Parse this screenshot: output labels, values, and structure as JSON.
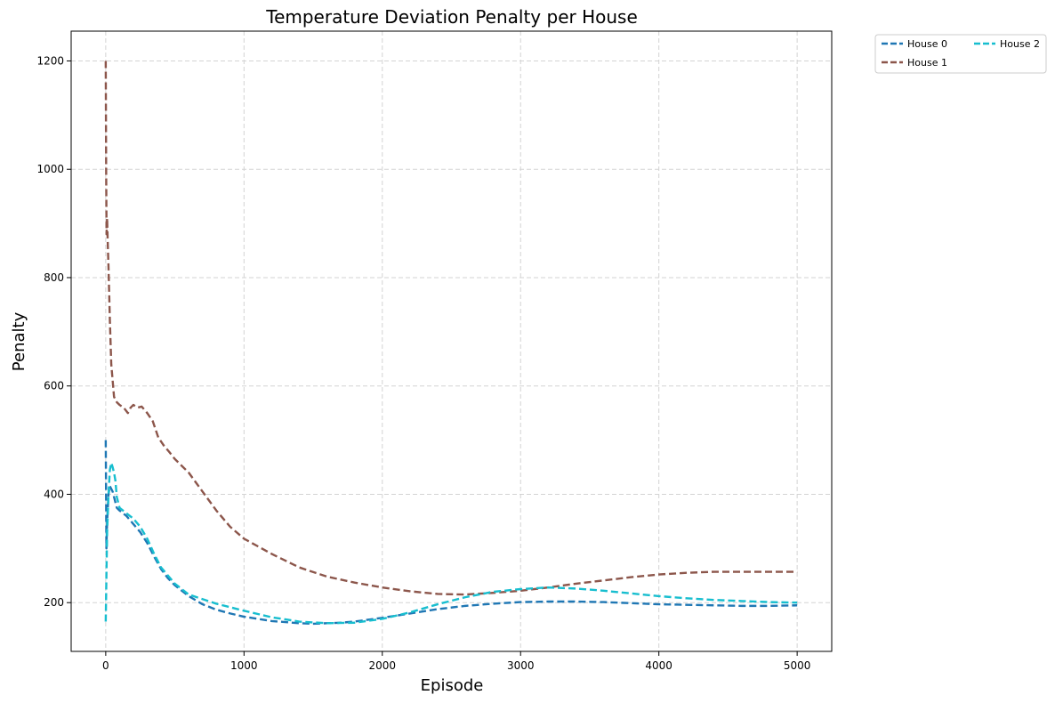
{
  "chart_data": {
    "type": "line",
    "title": "Temperature Deviation Penalty per House",
    "xlabel": "Episode",
    "ylabel": "Penalty",
    "xlim": [
      -250,
      5250
    ],
    "ylim": [
      110,
      1255
    ],
    "xticks": [
      0,
      1000,
      2000,
      3000,
      4000,
      5000
    ],
    "yticks": [
      200,
      400,
      600,
      800,
      1000,
      1200
    ],
    "grid": true,
    "line_style": "dashed",
    "legend": {
      "placement": "outside-top-right",
      "columns": 2
    },
    "series": [
      {
        "name": "House 0",
        "color": "#1f77b4",
        "x": [
          0,
          5,
          10,
          20,
          30,
          40,
          50,
          60,
          80,
          100,
          150,
          200,
          250,
          300,
          350,
          400,
          450,
          500,
          600,
          700,
          800,
          900,
          1000,
          1200,
          1400,
          1500,
          1600,
          1700,
          1800,
          2000,
          2200,
          2400,
          2600,
          2800,
          3000,
          3200,
          3400,
          3600,
          3800,
          4000,
          4200,
          4400,
          4600,
          4800,
          5000
        ],
        "values": [
          500,
          300,
          350,
          400,
          415,
          410,
          405,
          395,
          375,
          370,
          360,
          345,
          330,
          310,
          285,
          262,
          245,
          232,
          212,
          197,
          187,
          180,
          174,
          166,
          162,
          161,
          162,
          163,
          165,
          172,
          180,
          188,
          194,
          198,
          201,
          202,
          202,
          201,
          199,
          197,
          196,
          195,
          194,
          194,
          195
        ]
      },
      {
        "name": "House 1",
        "color": "#8c564b",
        "x": [
          0,
          3,
          6,
          10,
          15,
          20,
          30,
          40,
          50,
          60,
          80,
          100,
          130,
          160,
          180,
          200,
          230,
          260,
          300,
          340,
          380,
          420,
          460,
          500,
          600,
          700,
          800,
          900,
          1000,
          1200,
          1400,
          1600,
          1800,
          2000,
          2200,
          2400,
          2600,
          2800,
          3000,
          3200,
          3400,
          3600,
          3800,
          4000,
          4200,
          4400,
          4600,
          4800,
          5000
        ],
        "values": [
          1200,
          1000,
          880,
          910,
          860,
          820,
          720,
          640,
          610,
          580,
          570,
          565,
          560,
          550,
          560,
          565,
          560,
          562,
          550,
          535,
          505,
          490,
          478,
          465,
          440,
          405,
          370,
          340,
          318,
          290,
          265,
          248,
          237,
          228,
          221,
          216,
          215,
          218,
          222,
          228,
          235,
          241,
          247,
          252,
          255,
          257,
          257,
          257,
          257
        ]
      },
      {
        "name": "House 2",
        "color": "#17becf",
        "x": [
          0,
          5,
          10,
          20,
          30,
          40,
          50,
          60,
          70,
          80,
          100,
          150,
          200,
          250,
          300,
          350,
          400,
          500,
          600,
          800,
          1000,
          1200,
          1400,
          1600,
          1800,
          2000,
          2200,
          2400,
          2600,
          2800,
          3000,
          3200,
          3400,
          3600,
          3800,
          4000,
          4200,
          4400,
          4600,
          4800,
          5000
        ],
        "values": [
          165,
          250,
          330,
          400,
          445,
          458,
          450,
          440,
          425,
          395,
          375,
          365,
          355,
          340,
          318,
          290,
          265,
          235,
          215,
          198,
          185,
          173,
          165,
          162,
          163,
          170,
          182,
          197,
          210,
          220,
          225,
          228,
          226,
          222,
          217,
          212,
          208,
          205,
          203,
          201,
          200
        ]
      }
    ]
  }
}
